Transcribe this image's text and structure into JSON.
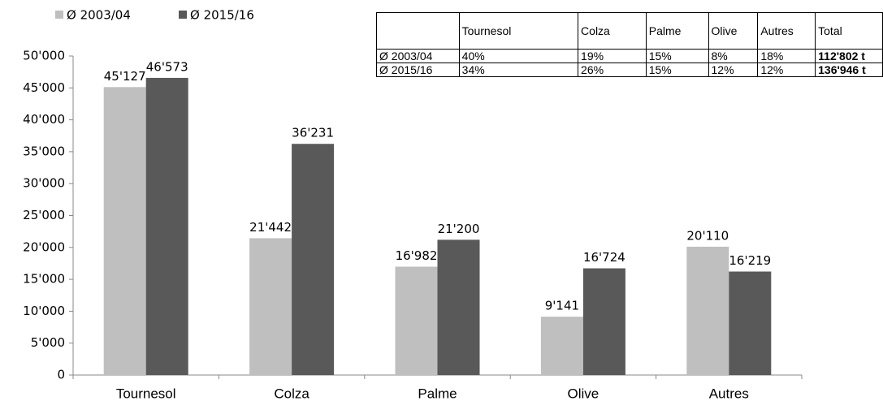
{
  "chart_data": {
    "type": "bar",
    "categories": [
      "Tournesol",
      "Colza",
      "Palme",
      "Olive",
      "Autres"
    ],
    "series": [
      {
        "name": "Ø 2003/04",
        "color": "#bfbfbf",
        "values": [
          45127,
          21442,
          16982,
          9141,
          20110
        ],
        "value_labels": [
          "45'127",
          "21'442",
          "16'982",
          "9'141",
          "20'110"
        ]
      },
      {
        "name": "Ø 2015/16",
        "color": "#595959",
        "values": [
          46573,
          36231,
          21200,
          16724,
          16219
        ],
        "value_labels": [
          "46'573",
          "36'231",
          "21'200",
          "16'724",
          "16'219"
        ]
      }
    ],
    "ylim": [
      0,
      50000
    ],
    "yticks": [
      {
        "value": 0,
        "label": "0"
      },
      {
        "value": 5000,
        "label": "5'000"
      },
      {
        "value": 10000,
        "label": "10'000"
      },
      {
        "value": 15000,
        "label": "15'000"
      },
      {
        "value": 20000,
        "label": "20'000"
      },
      {
        "value": 25000,
        "label": "25'000"
      },
      {
        "value": 30000,
        "label": "30'000"
      },
      {
        "value": 35000,
        "label": "35'000"
      },
      {
        "value": 40000,
        "label": "40'000"
      },
      {
        "value": 45000,
        "label": "45'000"
      },
      {
        "value": 50000,
        "label": "50'000"
      }
    ],
    "legend": "top-left"
  },
  "table": {
    "header": [
      "Tournesol",
      "Colza",
      "Palme",
      "Olive",
      "Autres",
      "Total"
    ],
    "rows": [
      [
        "Ø 2003/04",
        "40%",
        "19%",
        "15%",
        "8%",
        "18%",
        "112'802 t"
      ],
      [
        "Ø 2015/16",
        "34%",
        "26%",
        "15%",
        "12%",
        "12%",
        "136'946 t"
      ]
    ]
  }
}
